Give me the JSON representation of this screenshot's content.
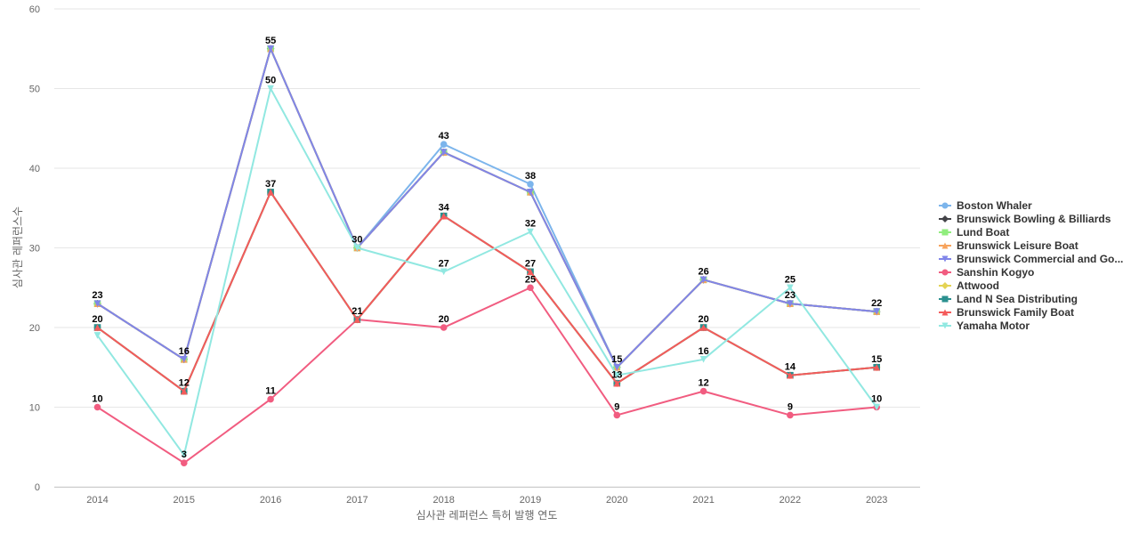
{
  "chart_data": {
    "type": "line",
    "xlabel": "심사관 레퍼런스 특허 발행 연도",
    "ylabel": "심사관 레퍼런스수",
    "ylim": [
      0,
      60
    ],
    "yticks": [
      0,
      10,
      20,
      30,
      40,
      50,
      60
    ],
    "grid": true,
    "legend_position": "right",
    "categories": [
      "2014",
      "2015",
      "2016",
      "2017",
      "2018",
      "2019",
      "2020",
      "2021",
      "2022",
      "2023"
    ],
    "series": [
      {
        "name": "Boston Whaler",
        "color": "#7cb5ec",
        "marker": "circle",
        "values": [
          23,
          16,
          55,
          30,
          43,
          38,
          15,
          26,
          23,
          22
        ]
      },
      {
        "name": "Brunswick Bowling & Billiards",
        "color": "#434348",
        "marker": "diamond",
        "values": [
          23,
          16,
          55,
          30,
          42,
          37,
          15,
          26,
          23,
          22
        ]
      },
      {
        "name": "Lund Boat",
        "color": "#90ed7d",
        "marker": "square",
        "values": [
          23,
          16,
          55,
          30,
          42,
          37,
          15,
          26,
          23,
          22
        ]
      },
      {
        "name": "Brunswick Leisure Boat",
        "color": "#f7a35c",
        "marker": "triangle",
        "values": [
          23,
          16,
          55,
          30,
          42,
          37,
          15,
          26,
          23,
          22
        ]
      },
      {
        "name": "Brunswick Commercial and Go...",
        "color": "#8085e9",
        "marker": "triangle-down",
        "values": [
          23,
          16,
          55,
          30,
          42,
          37,
          15,
          26,
          23,
          22
        ]
      },
      {
        "name": "Sanshin Kogyo",
        "color": "#f15c80",
        "marker": "circle",
        "values": [
          10,
          3,
          11,
          21,
          20,
          25,
          9,
          12,
          9,
          10
        ]
      },
      {
        "name": "Attwood",
        "color": "#e4d354",
        "marker": "diamond",
        "values": [
          20,
          12,
          37,
          21,
          34,
          27,
          13,
          20,
          14,
          15
        ]
      },
      {
        "name": "Land N Sea Distributing",
        "color": "#2b908f",
        "marker": "square",
        "values": [
          20,
          12,
          37,
          21,
          34,
          27,
          13,
          20,
          14,
          15
        ]
      },
      {
        "name": "Brunswick Family Boat",
        "color": "#f45b5b",
        "marker": "triangle",
        "values": [
          20,
          12,
          37,
          21,
          34,
          27,
          13,
          20,
          14,
          15
        ]
      },
      {
        "name": "Yamaha Motor",
        "color": "#91e8e1",
        "marker": "triangle-down",
        "values": [
          19,
          4,
          50,
          30,
          27,
          32,
          14,
          16,
          25,
          10
        ]
      }
    ],
    "data_labels": [
      {
        "category": "2014",
        "value": 23,
        "text": "23"
      },
      {
        "category": "2014",
        "value": 20,
        "text": "20"
      },
      {
        "category": "2014",
        "value": 10,
        "text": "10"
      },
      {
        "category": "2015",
        "value": 16,
        "text": "16"
      },
      {
        "category": "2015",
        "value": 12,
        "text": "12"
      },
      {
        "category": "2015",
        "value": 3,
        "text": "3"
      },
      {
        "category": "2016",
        "value": 55,
        "text": "55"
      },
      {
        "category": "2016",
        "value": 50,
        "text": "50"
      },
      {
        "category": "2016",
        "value": 37,
        "text": "37"
      },
      {
        "category": "2016",
        "value": 11,
        "text": "11"
      },
      {
        "category": "2017",
        "value": 30,
        "text": "30"
      },
      {
        "category": "2017",
        "value": 21,
        "text": "21"
      },
      {
        "category": "2018",
        "value": 43,
        "text": "43"
      },
      {
        "category": "2018",
        "value": 34,
        "text": "34"
      },
      {
        "category": "2018",
        "value": 27,
        "text": "27"
      },
      {
        "category": "2018",
        "value": 20,
        "text": "20"
      },
      {
        "category": "2019",
        "value": 38,
        "text": "38"
      },
      {
        "category": "2019",
        "value": 32,
        "text": "32"
      },
      {
        "category": "2019",
        "value": 27,
        "text": "27"
      },
      {
        "category": "2019",
        "value": 25,
        "text": "25"
      },
      {
        "category": "2020",
        "value": 15,
        "text": "15"
      },
      {
        "category": "2020",
        "value": 13,
        "text": "13"
      },
      {
        "category": "2020",
        "value": 9,
        "text": "9"
      },
      {
        "category": "2021",
        "value": 26,
        "text": "26"
      },
      {
        "category": "2021",
        "value": 20,
        "text": "20"
      },
      {
        "category": "2021",
        "value": 16,
        "text": "16"
      },
      {
        "category": "2021",
        "value": 12,
        "text": "12"
      },
      {
        "category": "2022",
        "value": 25,
        "text": "25"
      },
      {
        "category": "2022",
        "value": 23,
        "text": "23"
      },
      {
        "category": "2022",
        "value": 14,
        "text": "14"
      },
      {
        "category": "2022",
        "value": 9,
        "text": "9"
      },
      {
        "category": "2023",
        "value": 22,
        "text": "22"
      },
      {
        "category": "2023",
        "value": 15,
        "text": "15"
      },
      {
        "category": "2023",
        "value": 10,
        "text": "10"
      }
    ]
  }
}
